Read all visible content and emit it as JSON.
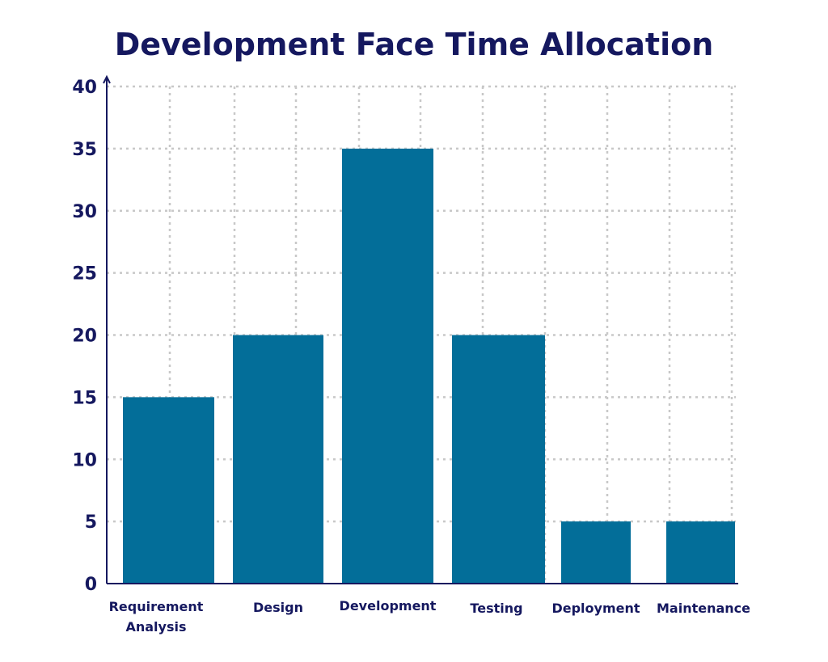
{
  "colors": {
    "bar": "#036e99",
    "axis": "#15185f",
    "text": "#15185f",
    "grid": "#c8c8c8",
    "background": "#ffffff"
  },
  "chart_data": {
    "type": "bar",
    "title": "Development Face Time Allocation",
    "xlabel": "",
    "ylabel": "",
    "categories": [
      [
        "Requirement",
        "Analysis"
      ],
      [
        "Design"
      ],
      [
        "Development"
      ],
      [
        "Testing"
      ],
      [
        "Deployment"
      ],
      [
        "Maintenance"
      ]
    ],
    "values": [
      15,
      20,
      35,
      20,
      5,
      5
    ],
    "ylim": [
      0,
      40
    ],
    "yticks": [
      "0",
      "5",
      "10",
      "15",
      "20",
      "25",
      "30",
      "35",
      "40"
    ],
    "grid": true,
    "grid_style": "dotted"
  }
}
